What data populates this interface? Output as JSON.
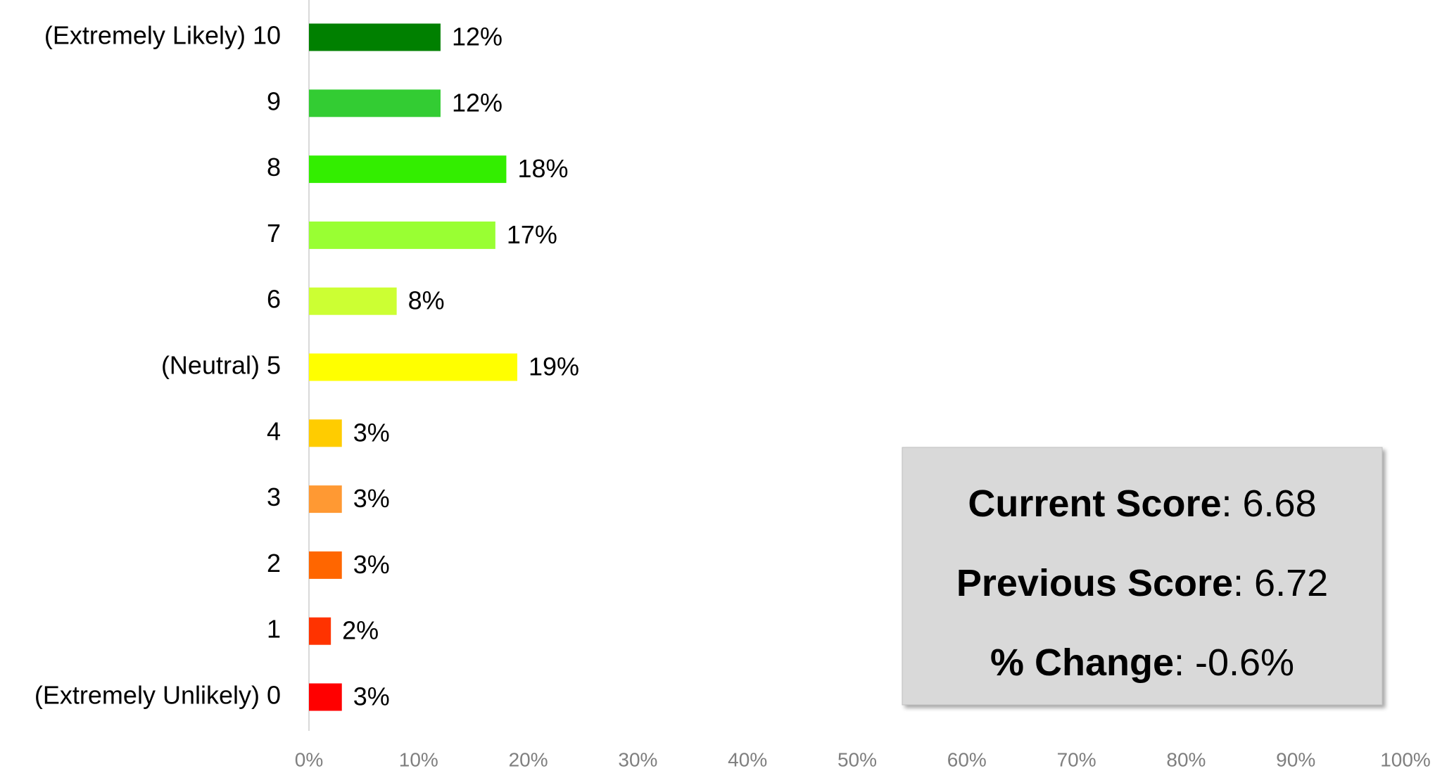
{
  "chart_data": {
    "type": "barh",
    "categories": [
      "(Extremely Likely) 10",
      "9",
      "8",
      "7",
      "6",
      "(Neutral) 5",
      "4",
      "3",
      "2",
      "1",
      "(Extremely Unlikely) 0"
    ],
    "values": [
      12,
      12,
      18,
      17,
      8,
      19,
      3,
      3,
      3,
      2,
      3
    ],
    "value_labels": [
      "12%",
      "12%",
      "18%",
      "17%",
      "8%",
      "19%",
      "3%",
      "3%",
      "3%",
      "2%",
      "3%"
    ],
    "colors": [
      "#008000",
      "#33cc33",
      "#33ee00",
      "#99ff33",
      "#ccff33",
      "#ffff00",
      "#ffcc00",
      "#ff9933",
      "#ff6600",
      "#ff3300",
      "#ff0000"
    ],
    "xlim": [
      0,
      100
    ],
    "xticks": [
      {
        "value": 0,
        "label": "0%"
      },
      {
        "value": 10,
        "label": "10%"
      },
      {
        "value": 20,
        "label": "20%"
      },
      {
        "value": 30,
        "label": "30%"
      },
      {
        "value": 40,
        "label": "40%"
      },
      {
        "value": 50,
        "label": "50%"
      },
      {
        "value": 60,
        "label": "60%"
      },
      {
        "value": 70,
        "label": "70%"
      },
      {
        "value": 80,
        "label": "80%"
      },
      {
        "value": 90,
        "label": "90%"
      },
      {
        "value": 100,
        "label": "100%"
      }
    ],
    "grid": false,
    "annotations": [
      {
        "label": "Current Score",
        "text": ": 6.68"
      },
      {
        "label": "Previous Score",
        "text": ": 6.72"
      },
      {
        "label": "% Change",
        "text": ": -0.6%"
      }
    ]
  }
}
